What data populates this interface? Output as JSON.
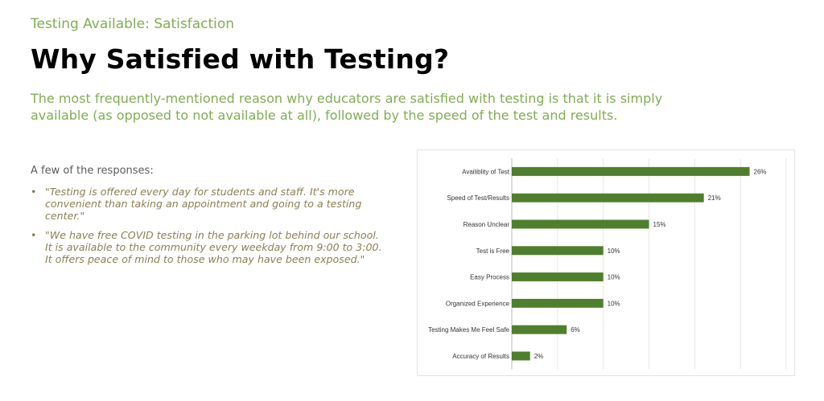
{
  "header": {
    "subtitle": "Testing Available: Satisfaction",
    "title": "Why Satisfied with Testing?",
    "lead": "The most frequently-mentioned reason why educators are satisfied with testing is that it is simply available (as opposed to not available at all), followed by the speed of the test and results."
  },
  "responses": {
    "heading": "A few of the responses:",
    "items": [
      "\"Testing is offered every day for students and staff. It's more convenient than taking an appointment and going to a testing center.\"",
      "\"We have free COVID testing in the parking lot behind our school. It is available to the community every weekday from 9:00 to 3:00. It offers peace of mind to those who may have been exposed.\""
    ]
  },
  "colors": {
    "accent_green": "#7fae52",
    "bar_green": "#4f7f2c",
    "quote_text": "#8b7f52"
  },
  "chart_data": {
    "type": "bar",
    "orientation": "horizontal",
    "categories": [
      "Availiblity of Test",
      "Speed of Test/Results",
      "Reason Unclear",
      "Test is Free",
      "Easy Process",
      "Organized Experience",
      "Testing Makes Me Feel Safe",
      "Accuracy of Results"
    ],
    "values": [
      26,
      21,
      15,
      10,
      10,
      10,
      6,
      2
    ],
    "value_labels": [
      "26%",
      "21%",
      "15%",
      "10%",
      "10%",
      "10%",
      "6%",
      "2%"
    ],
    "unit": "%",
    "xlim": [
      0,
      30
    ],
    "grid": true,
    "legend": "none"
  }
}
